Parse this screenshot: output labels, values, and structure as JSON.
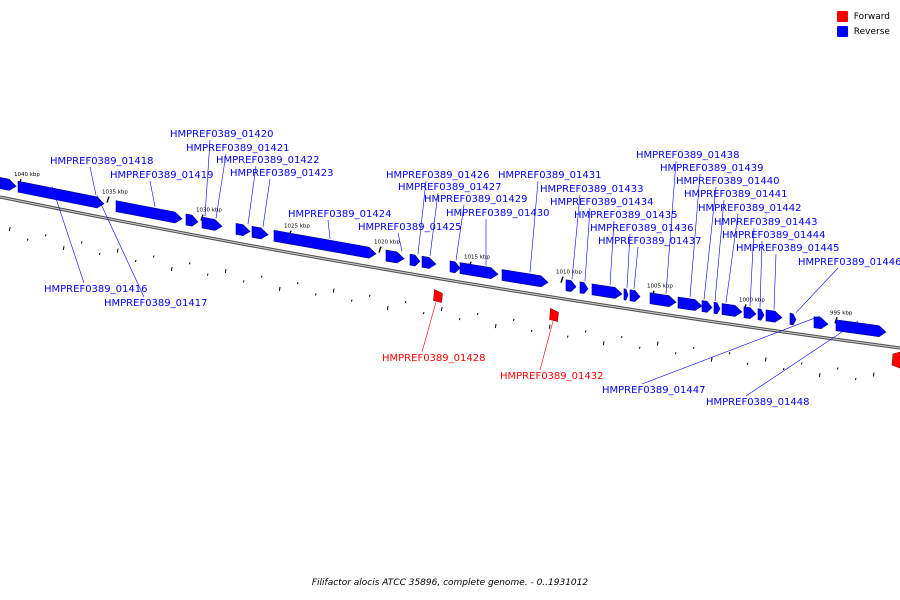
{
  "caption": "Filifactor alocis ATCC 35896, complete genome. - 0..1931012",
  "legend": [
    {
      "label": "Forward",
      "color": "#ff0000"
    },
    {
      "label": "Reverse",
      "color": "#0000ff"
    }
  ],
  "colors": {
    "forward": "#ff0000",
    "reverse": "#0000ff",
    "backbone": "#777777"
  },
  "ticks": [
    {
      "kbp": 1040,
      "label": "1040 kbp"
    },
    {
      "kbp": 1035,
      "label": "1035 kbp"
    },
    {
      "kbp": 1030,
      "label": "1030 kbp"
    },
    {
      "kbp": 1025,
      "label": "1025 kbp"
    },
    {
      "kbp": 1020,
      "label": "1020 kbp"
    },
    {
      "kbp": 1015,
      "label": "1015 kbp"
    },
    {
      "kbp": 1010,
      "label": "1010 kbp"
    },
    {
      "kbp": 1005,
      "label": "1005 kbp"
    },
    {
      "kbp": 1000,
      "label": "1000 kbp"
    },
    {
      "kbp": 995,
      "label": "995 kbp"
    }
  ],
  "genes": [
    {
      "id": "HMPREF0389_01416",
      "strand": "reverse"
    },
    {
      "id": "HMPREF0389_01417",
      "strand": "reverse"
    },
    {
      "id": "HMPREF0389_01418",
      "strand": "reverse"
    },
    {
      "id": "HMPREF0389_01419",
      "strand": "reverse"
    },
    {
      "id": "HMPREF0389_01420",
      "strand": "reverse"
    },
    {
      "id": "HMPREF0389_01421",
      "strand": "reverse"
    },
    {
      "id": "HMPREF0389_01422",
      "strand": "reverse"
    },
    {
      "id": "HMPREF0389_01423",
      "strand": "reverse"
    },
    {
      "id": "HMPREF0389_01424",
      "strand": "reverse"
    },
    {
      "id": "HMPREF0389_01425",
      "strand": "reverse"
    },
    {
      "id": "HMPREF0389_01426",
      "strand": "reverse"
    },
    {
      "id": "HMPREF0389_01427",
      "strand": "reverse"
    },
    {
      "id": "HMPREF0389_01428",
      "strand": "forward"
    },
    {
      "id": "HMPREF0389_01429",
      "strand": "reverse"
    },
    {
      "id": "HMPREF0389_01430",
      "strand": "reverse"
    },
    {
      "id": "HMPREF0389_01431",
      "strand": "reverse"
    },
    {
      "id": "HMPREF0389_01432",
      "strand": "forward"
    },
    {
      "id": "HMPREF0389_01433",
      "strand": "reverse"
    },
    {
      "id": "HMPREF0389_01434",
      "strand": "reverse"
    },
    {
      "id": "HMPREF0389_01435",
      "strand": "reverse"
    },
    {
      "id": "HMPREF0389_01436",
      "strand": "reverse"
    },
    {
      "id": "HMPREF0389_01437",
      "strand": "reverse"
    },
    {
      "id": "HMPREF0389_01438",
      "strand": "reverse"
    },
    {
      "id": "HMPREF0389_01439",
      "strand": "reverse"
    },
    {
      "id": "HMPREF0389_01440",
      "strand": "reverse"
    },
    {
      "id": "HMPREF0389_01441",
      "strand": "reverse"
    },
    {
      "id": "HMPREF0389_01442",
      "strand": "reverse"
    },
    {
      "id": "HMPREF0389_01443",
      "strand": "reverse"
    },
    {
      "id": "HMPREF0389_01444",
      "strand": "reverse"
    },
    {
      "id": "HMPREF0389_01445",
      "strand": "reverse"
    },
    {
      "id": "HMPREF0389_01446",
      "strand": "reverse"
    },
    {
      "id": "HMPREF0389_01447",
      "strand": "reverse"
    },
    {
      "id": "HMPREF0389_01448",
      "strand": "reverse"
    }
  ]
}
